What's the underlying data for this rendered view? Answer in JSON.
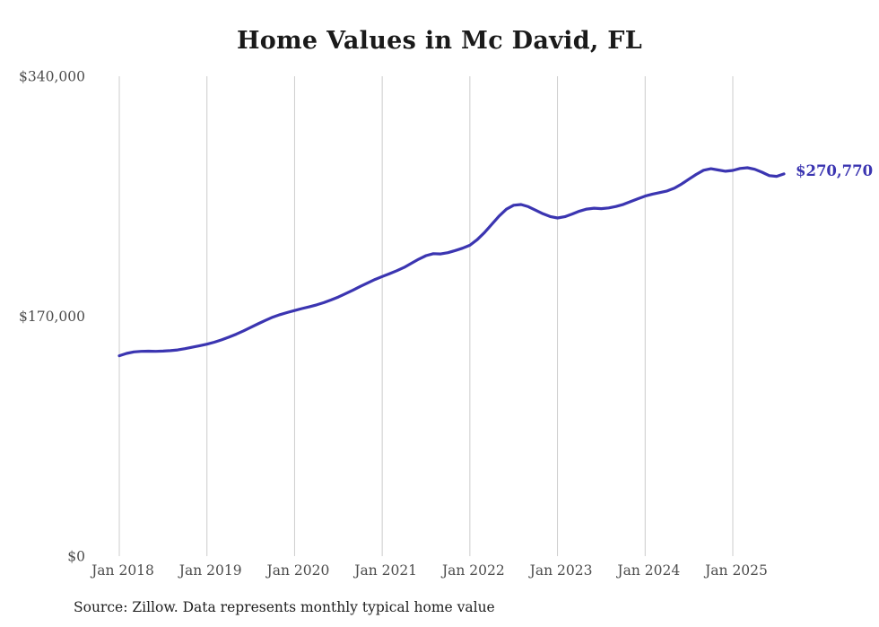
{
  "title": "Home Values in Mc David, FL",
  "source_note": "Source: Zillow. Data represents monthly typical home value",
  "end_label": "$270,770",
  "colors": {
    "line": "#3b35b1",
    "grid": "#cccccc",
    "axis_text": "#4d4d4d",
    "title_text": "#1a1a1a"
  },
  "chart_data": {
    "type": "line",
    "title": "Home Values in Mc David, FL",
    "xlabel": "",
    "ylabel": "",
    "x_start": "2018-01",
    "x_end": "2025-08",
    "frequency": "monthly",
    "x_tick_labels": [
      "Jan 2018",
      "Jan 2019",
      "Jan 2020",
      "Jan 2021",
      "Jan 2022",
      "Jan 2023",
      "Jan 2024",
      "Jan 2025"
    ],
    "y_ticks": [
      0,
      170000,
      340000
    ],
    "y_tick_labels": [
      "$0",
      "$170,000",
      "$340,000"
    ],
    "ylim": [
      0,
      340000
    ],
    "grid": "vertical",
    "legend": "none",
    "end_value": 270770,
    "series": [
      {
        "name": "Typical home value",
        "values": [
          142000,
          143600,
          144700,
          145100,
          145200,
          145100,
          145300,
          145600,
          146100,
          147000,
          148000,
          149100,
          150200,
          151600,
          153200,
          155100,
          157200,
          159600,
          162100,
          164600,
          167000,
          169300,
          171100,
          172600,
          174000,
          175400,
          176600,
          178000,
          179600,
          181500,
          183600,
          186000,
          188500,
          191100,
          193600,
          196000,
          198100,
          200100,
          202200,
          204600,
          207500,
          210400,
          212900,
          214300,
          214100,
          215000,
          216500,
          218200,
          220300,
          224200,
          229200,
          235100,
          240900,
          245800,
          248600,
          249100,
          247600,
          245100,
          242600,
          240600,
          239600,
          240500,
          242400,
          244400,
          245900,
          246500,
          246200,
          246700,
          247700,
          249200,
          251200,
          253200,
          255100,
          256500,
          257600,
          258700,
          260700,
          263700,
          267100,
          270500,
          273400,
          274500,
          273600,
          272700,
          273300,
          274700,
          275200,
          274100,
          272000,
          269600,
          269100,
          270770
        ]
      }
    ]
  }
}
